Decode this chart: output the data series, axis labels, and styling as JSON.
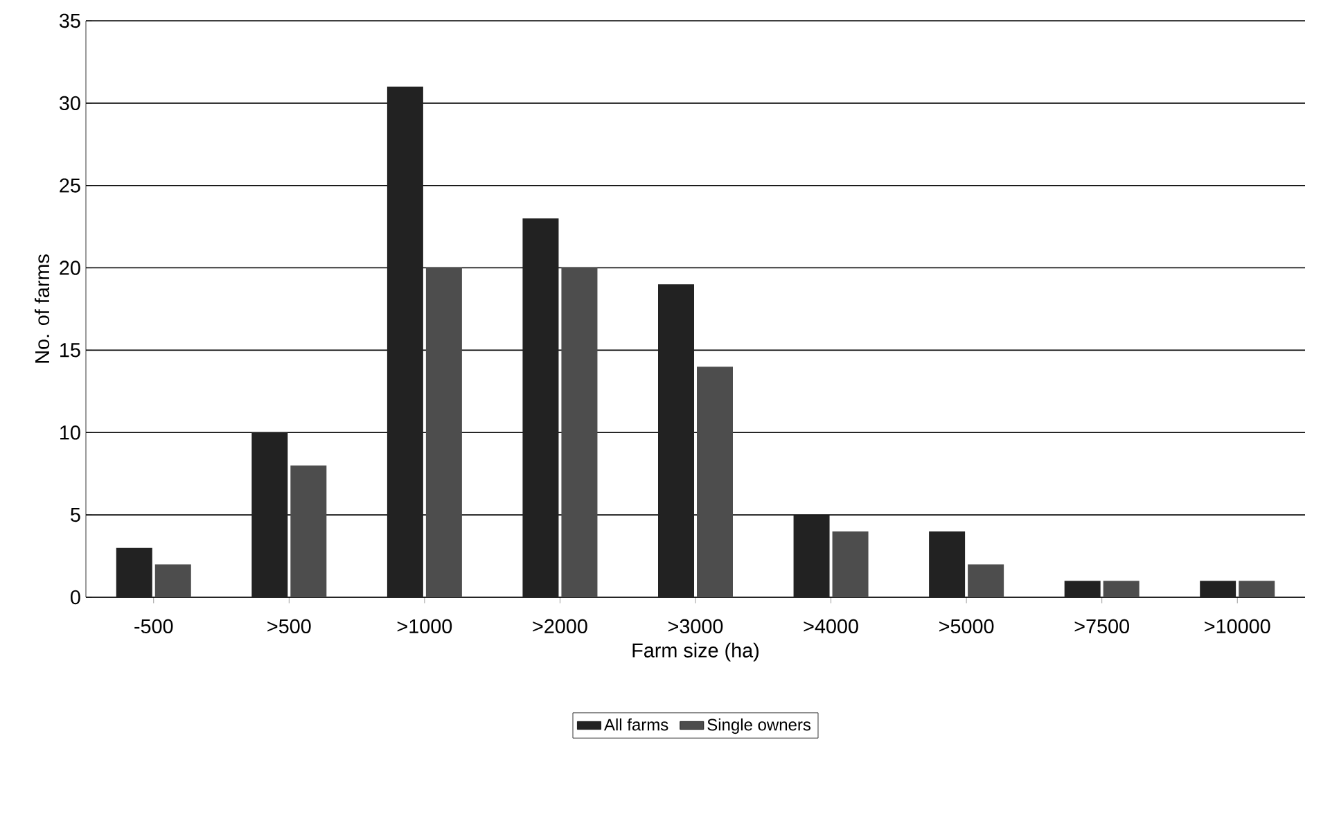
{
  "chart_data": {
    "type": "bar",
    "xlabel": "Farm size (ha)",
    "ylabel": "No. of farms",
    "categories": [
      "-500",
      ">500",
      ">1000",
      ">2000",
      ">3000",
      ">4000",
      ">5000",
      ">7500",
      ">10000"
    ],
    "series": [
      {
        "name": "All farms",
        "color": "#222222",
        "values": [
          3,
          10,
          31,
          23,
          19,
          5,
          4,
          1,
          1
        ]
      },
      {
        "name": "Single owners",
        "color": "#4d4d4d",
        "values": [
          2,
          8,
          20,
          20,
          14,
          4,
          2,
          1,
          1
        ]
      }
    ],
    "ylim": [
      0,
      35
    ],
    "yticks": [
      0,
      5,
      10,
      15,
      20,
      25,
      30,
      35
    ],
    "grid": "y",
    "legend": "bottom"
  }
}
